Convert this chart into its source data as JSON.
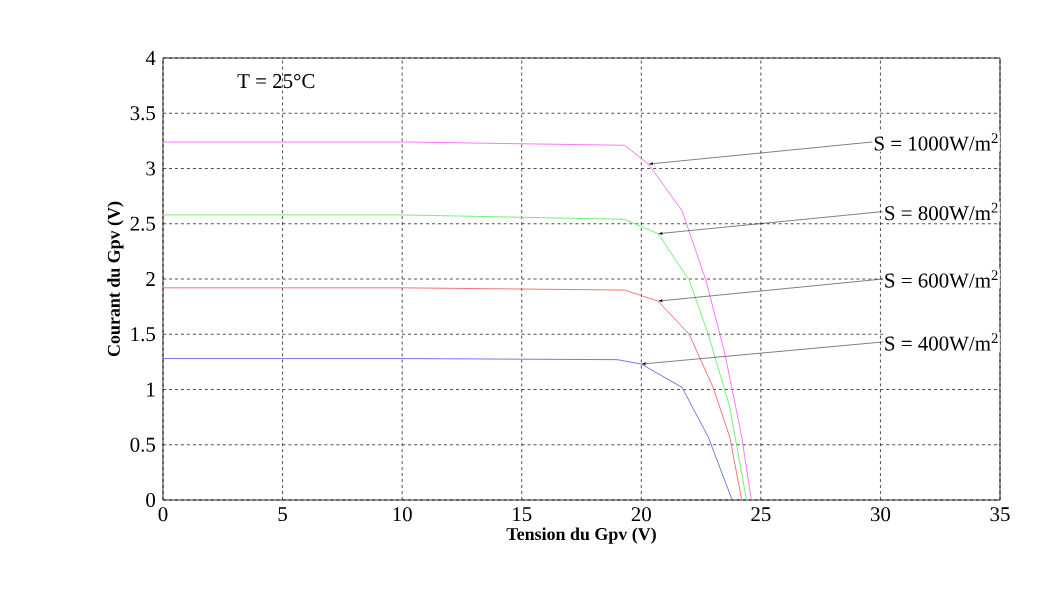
{
  "chart_data": {
    "type": "line",
    "xlabel": "Tension du Gpv (V)",
    "ylabel": "Courant du Gpv (V)",
    "xlim": [
      0,
      35
    ],
    "ylim": [
      0,
      4
    ],
    "xticks": [
      0,
      5,
      10,
      15,
      20,
      25,
      30,
      35
    ],
    "yticks": [
      0,
      0.5,
      1,
      1.5,
      2,
      2.5,
      3,
      3.5,
      4
    ],
    "grid": true,
    "series": [
      {
        "color": "#ff66ff",
        "x": [
          0,
          10,
          19.3,
          20.3,
          21.7,
          22.7,
          23.5,
          24.2,
          24.6
        ],
        "values": [
          3.24,
          3.24,
          3.21,
          3.04,
          2.62,
          1.99,
          1.32,
          0.57,
          0
        ]
      },
      {
        "color": "#66ee66",
        "x": [
          0,
          10,
          19.3,
          20.7,
          22.0,
          22.8,
          23.7,
          24.4
        ],
        "values": [
          2.58,
          2.58,
          2.54,
          2.41,
          1.99,
          1.5,
          0.84,
          0
        ]
      },
      {
        "color": "#ee6666",
        "x": [
          0,
          10,
          19.3,
          20.7,
          22.0,
          23.0,
          23.7,
          24.2
        ],
        "values": [
          1.92,
          1.92,
          1.9,
          1.8,
          1.5,
          1.02,
          0.57,
          0
        ]
      },
      {
        "color": "#6666ee",
        "x": [
          0,
          10,
          19.0,
          20.0,
          21.7,
          22.8,
          23.8
        ],
        "values": [
          1.28,
          1.28,
          1.27,
          1.23,
          1.02,
          0.57,
          0
        ]
      }
    ],
    "annotations": [
      "T = 25°C",
      {
        "text": "S = 1000W/m$^{2}$",
        "x": 20.3,
        "y": 3.04
      },
      {
        "text": "S = 800W/m$^{2}$",
        "x": 20.7,
        "y": 2.41
      },
      {
        "text": "S = 600W/m$^{2}$",
        "x": 20.7,
        "y": 1.8
      },
      {
        "text": "S = 400W/m$^{2}$",
        "x": 20.0,
        "y": 1.23
      }
    ]
  }
}
